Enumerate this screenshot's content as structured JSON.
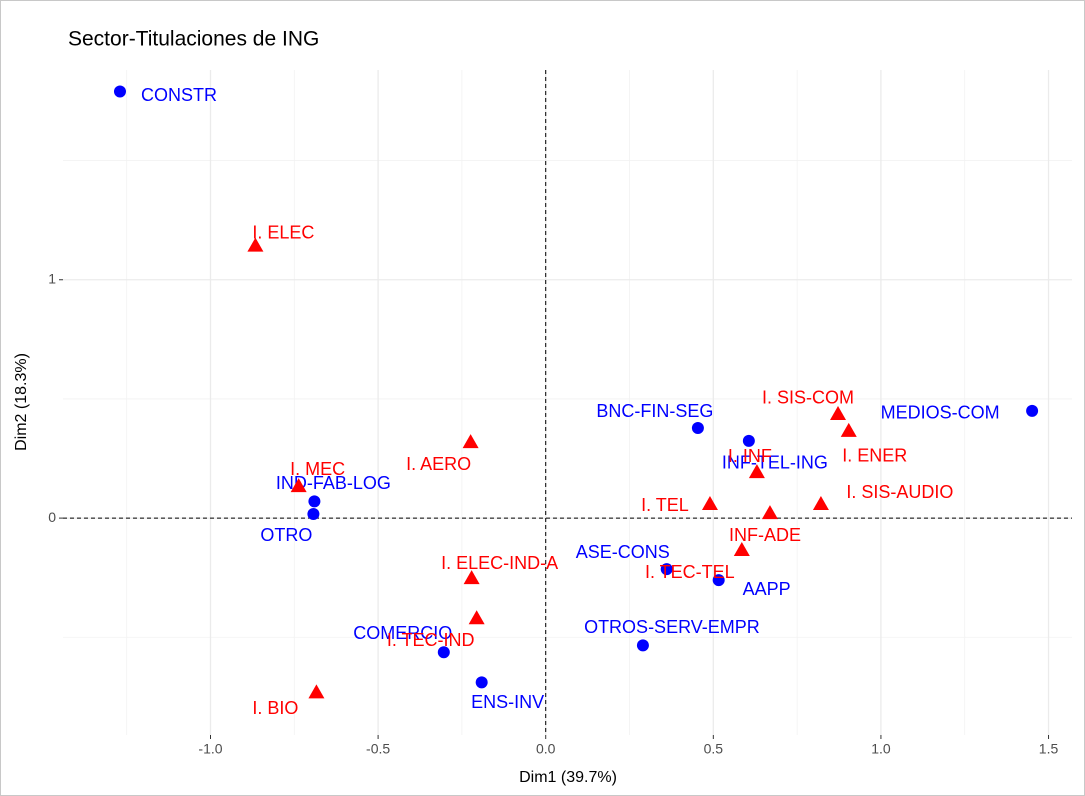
{
  "chart_data": {
    "type": "scatter",
    "title": "Sector-Titulaciones de ING",
    "x_label": "Dim1 (39.7%)",
    "y_label": "Dim2 (18.3%)",
    "xlim": [
      -1.44,
      1.57
    ],
    "ylim": [
      -0.91,
      1.88
    ],
    "xticks": [
      {
        "value": -1,
        "label": "-1.0"
      },
      -0.5,
      {
        "value": 0,
        "label": "0.0"
      },
      0.5,
      {
        "value": 1,
        "label": "1.0"
      },
      1.5
    ],
    "yticks": [
      0,
      1
    ],
    "xminor": [
      -1.25,
      -0.75,
      -0.25,
      0.25,
      0.75,
      1.25
    ],
    "yminor": [
      -0.5,
      0.5,
      1.5
    ],
    "hline": 0,
    "vline": 0,
    "grid": true,
    "series": [
      {
        "color": "#0000ff",
        "marker": "circle",
        "labels": [
          "CONSTR",
          "BNC-FIN-SEG",
          "INF-TEL-ING",
          "MEDIOS-COM",
          "IND-FAB-LOG",
          "OTRO",
          "ASE-CONS",
          "AAPP",
          "OTROS-SERV-EMPR",
          "COMERCIO",
          "ENS-INV"
        ],
        "x": [
          -1.27,
          0.454,
          0.606,
          1.451,
          -0.69,
          -0.693,
          0.361,
          0.516,
          0.29,
          -0.304,
          -0.191
        ],
        "values": [
          1.79,
          0.378,
          0.324,
          0.45,
          0.07,
          0.017,
          -0.214,
          -0.26,
          -0.534,
          -0.563,
          -0.689
        ]
      },
      {
        "color": "#ff0000",
        "marker": "triangle",
        "labels": [
          "I. ELEC",
          "I. SIS-COM",
          "I. ENER",
          "I. AERO",
          "I. INF",
          "I. MEC",
          "I. TEL",
          "INF-ADE",
          "I. SIS-AUDIO",
          "I. TEC-TEL",
          "I. ELEC-IND-A",
          "I. TEC-IND",
          "I. BIO"
        ],
        "x": [
          -0.866,
          0.872,
          0.904,
          -0.224,
          0.63,
          -0.737,
          0.49,
          0.669,
          0.821,
          0.585,
          -0.221,
          -0.206,
          -0.684
        ],
        "values": [
          1.143,
          0.437,
          0.366,
          0.319,
          0.193,
          0.134,
          0.059,
          0.021,
          0.059,
          -0.134,
          -0.252,
          -0.42,
          -0.731
        ]
      }
    ]
  }
}
